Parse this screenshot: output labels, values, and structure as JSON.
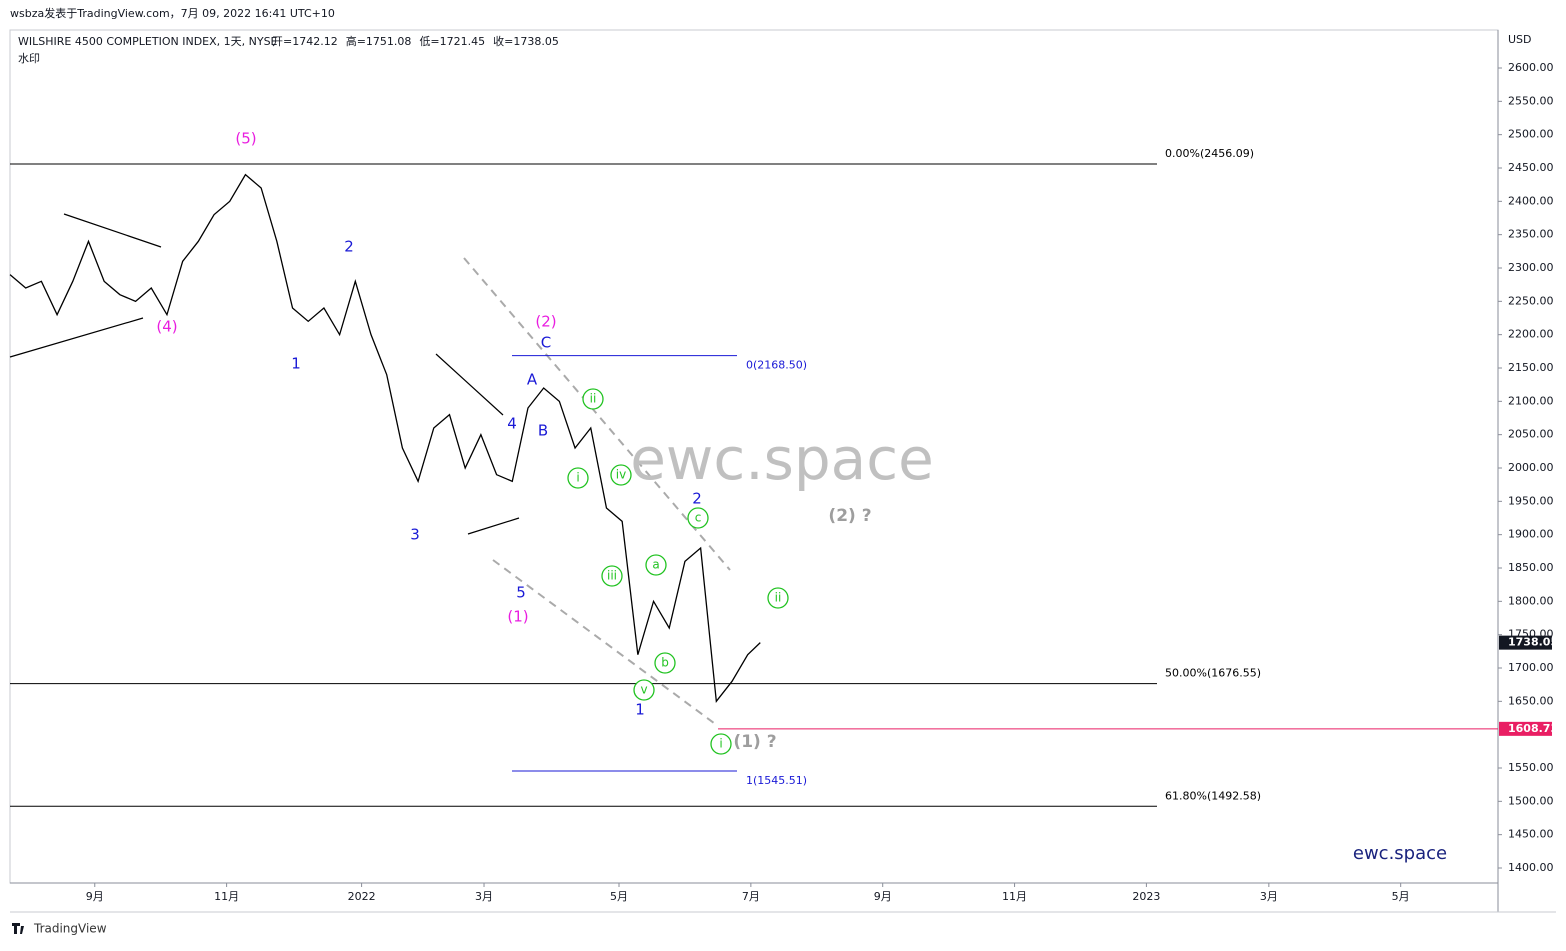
{
  "header": {
    "author": "wsbza发表于TradingView.com，7月 09, 2022 16:41 UTC+10",
    "symbol": "WILSHIRE 4500 COMPLETION INDEX, 1天, NYSE",
    "ohlc": [
      "开=1742.12",
      "高=1751.08",
      "低=1721.45",
      "收=1738.05"
    ],
    "note": "水印"
  },
  "footer": "TradingView",
  "chart_data": {
    "type": "line",
    "color": "#000000",
    "x": [
      0,
      5,
      10,
      15,
      20,
      25,
      30,
      35,
      40,
      45,
      50,
      55,
      60,
      65,
      70,
      75,
      80,
      85,
      90,
      95,
      100,
      105,
      110,
      115,
      120,
      125,
      130,
      135,
      140,
      145,
      150,
      155,
      160,
      165,
      170,
      175,
      180,
      185,
      190,
      195,
      200,
      205,
      210,
      215,
      220,
      225,
      230,
      235,
      239
    ],
    "values": [
      2290,
      2270,
      2280,
      2230,
      2280,
      2340,
      2280,
      2260,
      2250,
      2270,
      2230,
      2310,
      2340,
      2380,
      2400,
      2440,
      2420,
      2340,
      2240,
      2220,
      2240,
      2200,
      2280,
      2200,
      2140,
      2030,
      1980,
      2060,
      2080,
      2000,
      2050,
      1990,
      1980,
      2090,
      2120,
      2100,
      2030,
      2060,
      1940,
      1920,
      1720,
      1800,
      1760,
      1860,
      1880,
      1650,
      1680,
      1720,
      1738.05
    ],
    "currency": "USD",
    "ylim": [
      1377.5,
      2657
    ],
    "yticks": [
      {
        "value": 1400,
        "label": "1400.00"
      },
      {
        "value": 1450,
        "label": "1450.00"
      },
      {
        "value": 1500,
        "label": "1500.00"
      },
      {
        "value": 1550,
        "label": "1550.00"
      },
      {
        "value": 1650,
        "label": "1650.00"
      },
      {
        "value": 1700,
        "label": "1700.00"
      },
      {
        "value": 1750,
        "label": "1750.00"
      },
      {
        "value": 1800,
        "label": "1800.00"
      },
      {
        "value": 1850,
        "label": "1850.00"
      },
      {
        "value": 1900,
        "label": "1900.00"
      },
      {
        "value": 1950,
        "label": "1950.00"
      },
      {
        "value": 2000,
        "label": "2000.00"
      },
      {
        "value": 2050,
        "label": "2050.00"
      },
      {
        "value": 2100,
        "label": "2100.00"
      },
      {
        "value": 2150,
        "label": "2150.00"
      },
      {
        "value": 2200,
        "label": "2200.00"
      },
      {
        "value": 2250,
        "label": "2250.00"
      },
      {
        "value": 2300,
        "label": "2300.00"
      },
      {
        "value": 2350,
        "label": "2350.00"
      },
      {
        "value": 2400,
        "label": "2400.00"
      },
      {
        "value": 2450,
        "label": "2450.00"
      },
      {
        "value": 2500,
        "label": "2500.00"
      },
      {
        "value": 2550,
        "label": "2550.00"
      },
      {
        "value": 2600,
        "label": "2600.00"
      }
    ],
    "xlim": [
      0,
      474
    ],
    "xticks": [
      {
        "value": 27,
        "label": "9月"
      },
      {
        "value": 69,
        "label": "11月"
      },
      {
        "value": 112,
        "label": "2022"
      },
      {
        "value": 151,
        "label": "3月"
      },
      {
        "value": 194,
        "label": "5月"
      },
      {
        "value": 236,
        "label": "7月"
      },
      {
        "value": 278,
        "label": "9月"
      },
      {
        "value": 320,
        "label": "11月"
      },
      {
        "value": 362,
        "label": "2023"
      },
      {
        "value": 401,
        "label": "3月"
      },
      {
        "value": 443,
        "label": "5月"
      }
    ],
    "levels": [
      {
        "value": 2456.09,
        "label": "0.00%(2456.09)",
        "color": "#000000"
      },
      {
        "value": 1676.55,
        "label": "50.00%(1676.55)",
        "color": "#000000"
      },
      {
        "value": 1492.58,
        "label": "61.80%(1492.58)",
        "color": "#000000"
      },
      {
        "value": 2168.5,
        "label": "0(2168.50)",
        "color": "#1a1ad6"
      },
      {
        "value": 1545.51,
        "label": "1(1545.51)",
        "color": "#1a1ad6"
      }
    ],
    "price_markers": [
      {
        "value": 1738.05,
        "label": "1738.05",
        "color": "#131722"
      },
      {
        "value": 1608.73,
        "label": "1608.73",
        "color": "#e91e63"
      }
    ],
    "annotations": [
      "(5)",
      "(4)",
      "2",
      "1",
      "3",
      "4",
      "5",
      "(1)",
      "(2)",
      "C",
      "A",
      "B",
      "ii",
      "i",
      "iv",
      "iii",
      "a",
      "b",
      "v",
      "c",
      "ii",
      "i",
      "2",
      "1",
      "(1) ?",
      "(2) ?"
    ],
    "watermark": "ewc.space",
    "brand": "ewc.space"
  }
}
